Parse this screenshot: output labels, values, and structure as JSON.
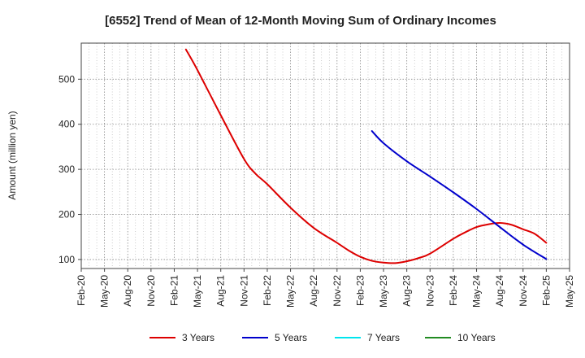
{
  "chart_data": {
    "type": "line",
    "title": "[6552]  Trend of Mean of 12-Month Moving Sum of Ordinary Incomes",
    "xlabel": "",
    "ylabel": "Amount (million yen)",
    "ylim": [
      80,
      580
    ],
    "yticks": [
      100,
      200,
      300,
      400,
      500
    ],
    "categories": [
      "Feb-20",
      "May-20",
      "Aug-20",
      "Nov-20",
      "Feb-21",
      "May-21",
      "Aug-21",
      "Nov-21",
      "Feb-22",
      "May-22",
      "Aug-22",
      "Nov-22",
      "Feb-23",
      "May-23",
      "Aug-23",
      "Nov-23",
      "Feb-24",
      "May-24",
      "Aug-24",
      "Nov-24",
      "Feb-25",
      "May-25"
    ],
    "grid": true,
    "legend_position": "bottom",
    "series": [
      {
        "name": "3 Years",
        "color": "#dd0000",
        "x": [
          4.5,
          5,
          6,
          7,
          7.5,
          8,
          9,
          10,
          11,
          11.5,
          12,
          12.5,
          13,
          13.5,
          14,
          14.5,
          15,
          16,
          16.5,
          17,
          17.5,
          18,
          18.5,
          19,
          19.5,
          20
        ],
        "values": [
          566,
          520,
          420,
          323,
          290,
          267,
          215,
          170,
          137,
          120,
          106,
          97,
          93,
          92,
          96,
          103,
          113,
          146,
          160,
          172,
          178,
          181,
          177,
          167,
          157,
          137
        ]
      },
      {
        "name": "5 Years",
        "color": "#0000cc",
        "x": [
          12.5,
          13,
          14,
          15,
          16,
          17,
          18,
          19,
          20
        ],
        "values": [
          385,
          358,
          318,
          284,
          249,
          212,
          172,
          133,
          101
        ]
      },
      {
        "name": "7 Years",
        "color": "#00e5ee",
        "x": [],
        "values": []
      },
      {
        "name": "10 Years",
        "color": "#228b22",
        "x": [],
        "values": []
      }
    ]
  }
}
